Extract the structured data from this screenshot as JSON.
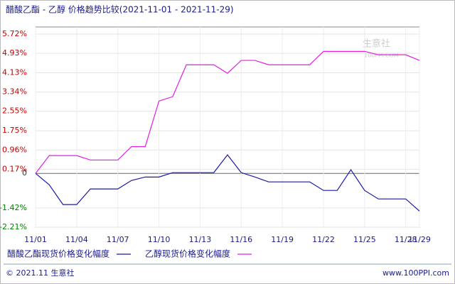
{
  "chart_data": {
    "type": "line",
    "title": "醋酸乙酯 - 乙醇 价格趋势比较(2021-11-01 - 2021-11-29)",
    "categories": [
      "11/01",
      null,
      null,
      "11/04",
      null,
      null,
      "11/07",
      null,
      null,
      "11/10",
      null,
      null,
      "11/13",
      null,
      null,
      "11/16",
      null,
      null,
      "11/19",
      null,
      null,
      "11/22",
      null,
      null,
      "11/25",
      null,
      null,
      "11/28",
      "11/29"
    ],
    "series": [
      {
        "name": "醋酸乙酯现货价格变化幅度",
        "color": "#1a1aa6",
        "values": [
          0,
          -0.47,
          -1.28,
          -1.28,
          -0.64,
          -0.64,
          -0.64,
          -0.29,
          -0.15,
          -0.15,
          0.03,
          0.03,
          0.03,
          0.03,
          0.76,
          0.03,
          -0.15,
          -0.35,
          -0.35,
          -0.35,
          -0.35,
          -0.7,
          -0.7,
          0.15,
          -0.7,
          -1.05,
          -1.05,
          -1.05,
          -1.55
        ]
      },
      {
        "name": "乙醇现货价格变化幅度",
        "color": "#e020e0",
        "values": [
          0,
          0.73,
          0.73,
          0.73,
          0.55,
          0.55,
          0.55,
          1.1,
          1.1,
          2.97,
          3.15,
          4.46,
          4.46,
          4.46,
          4.11,
          4.64,
          4.64,
          4.46,
          4.46,
          4.46,
          4.46,
          5.01,
          5.01,
          5.01,
          5.01,
          4.87,
          4.87,
          4.87,
          4.64
        ]
      }
    ],
    "ylim": [
      -2.21,
      5.72
    ],
    "yticks": [
      {
        "value": 5.72,
        "label": "5.72%"
      },
      {
        "value": 4.93,
        "label": "4.93%"
      },
      {
        "value": 4.13,
        "label": "4.13%"
      },
      {
        "value": 3.34,
        "label": "3.34%"
      },
      {
        "value": 2.55,
        "label": "2.55%"
      },
      {
        "value": 1.75,
        "label": "1.75%"
      },
      {
        "value": 0.96,
        "label": "0.96%"
      },
      {
        "value": 0.17,
        "label": "0.17%"
      },
      0,
      {
        "value": -1.42,
        "label": "-1.42%"
      },
      {
        "value": -2.21,
        "label": "-2.21%"
      }
    ],
    "grid": true,
    "legend": "bottom",
    "watermark": [
      "生意社",
      "100PPI.COM"
    ],
    "footer_left": "© 2021.11 生意社",
    "footer_right": "www.100PPI.com"
  }
}
